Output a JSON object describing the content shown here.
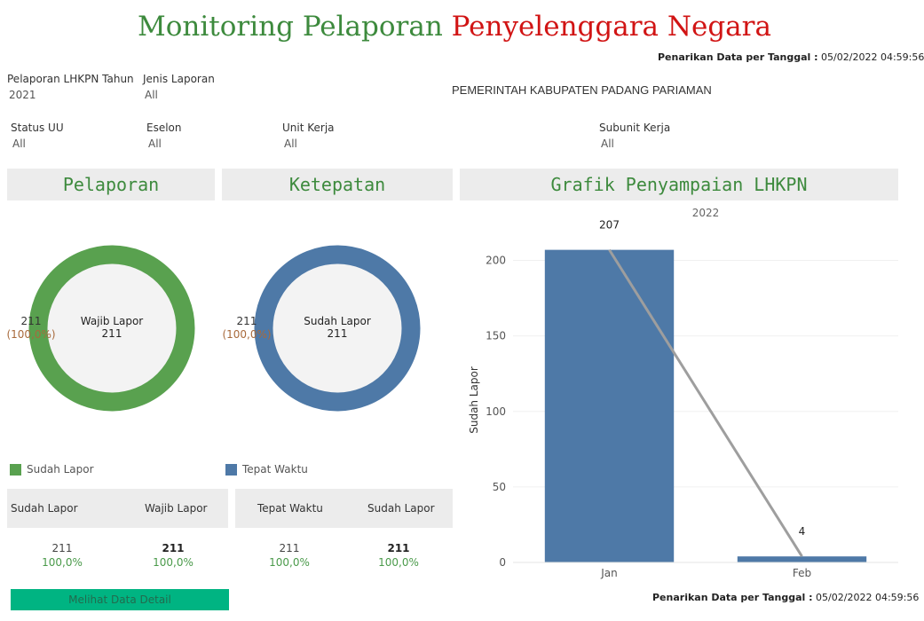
{
  "title": {
    "part1": "Monitoring Pelaporan",
    "part2": "Penyelenggara Negara"
  },
  "timestamp": {
    "label": "Penarikan Data per Tanggal :",
    "value": "05/02/2022 04:59:56"
  },
  "filters": {
    "tahun": {
      "label": "Pelaporan LHKPN Tahun",
      "value": "2021"
    },
    "jenis": {
      "label": "Jenis Laporan",
      "value": "All"
    },
    "status": {
      "label": "Status UU",
      "value": "All"
    },
    "eselon": {
      "label": "Eselon",
      "value": "All"
    },
    "unit": {
      "label": "Unit Kerja",
      "value": "All"
    },
    "subunit": {
      "label": "Subunit Kerja",
      "value": "All"
    }
  },
  "organization": "PEMERINTAH KABUPATEN PADANG PARIAMAN",
  "sections": {
    "pelaporan": "Pelaporan",
    "ketepatan": "Ketepatan",
    "grafik": "Grafik Penyampaian LHKPN"
  },
  "donut_pelaporan": {
    "center_label": "Wajib Lapor",
    "center_value": "211",
    "side_value": "211",
    "side_pct": "(100,0%)",
    "fraction": 1.0,
    "color": "#59a14f"
  },
  "donut_ketepatan": {
    "center_label": "Sudah Lapor",
    "center_value": "211",
    "side_value": "211",
    "side_pct": "(100,0%)",
    "fraction": 1.0,
    "color": "#4e79a7"
  },
  "legend": {
    "pelaporan": {
      "label": "Sudah Lapor",
      "color": "#59a14f"
    },
    "ketepatan": {
      "label": "Tepat Waktu",
      "color": "#4e79a7"
    }
  },
  "kpi_pelaporan": {
    "col1_label": "Sudah Lapor",
    "col2_label": "Wajib Lapor",
    "col1_value": "211",
    "col1_pct": "100,0%",
    "col2_value": "211",
    "col2_pct": "100,0%"
  },
  "kpi_ketepatan": {
    "col1_label": "Tepat Waktu",
    "col2_label": "Sudah Lapor",
    "col1_value": "211",
    "col1_pct": "100,0%",
    "col2_value": "211",
    "col2_pct": "100,0%"
  },
  "detail_button": "Melihat Data Detail",
  "chart_data": {
    "type": "bar",
    "title": "2022",
    "ylabel": "Sudah Lapor",
    "categories": [
      "Jan",
      "Feb"
    ],
    "values": [
      207,
      4
    ],
    "data_labels": [
      "207",
      "4"
    ],
    "ylim": [
      0,
      215
    ],
    "yticks": [
      0,
      50,
      100,
      150,
      200
    ],
    "bar_color": "#4e79a7",
    "line_color": "#9e9e9e",
    "grid": true
  }
}
